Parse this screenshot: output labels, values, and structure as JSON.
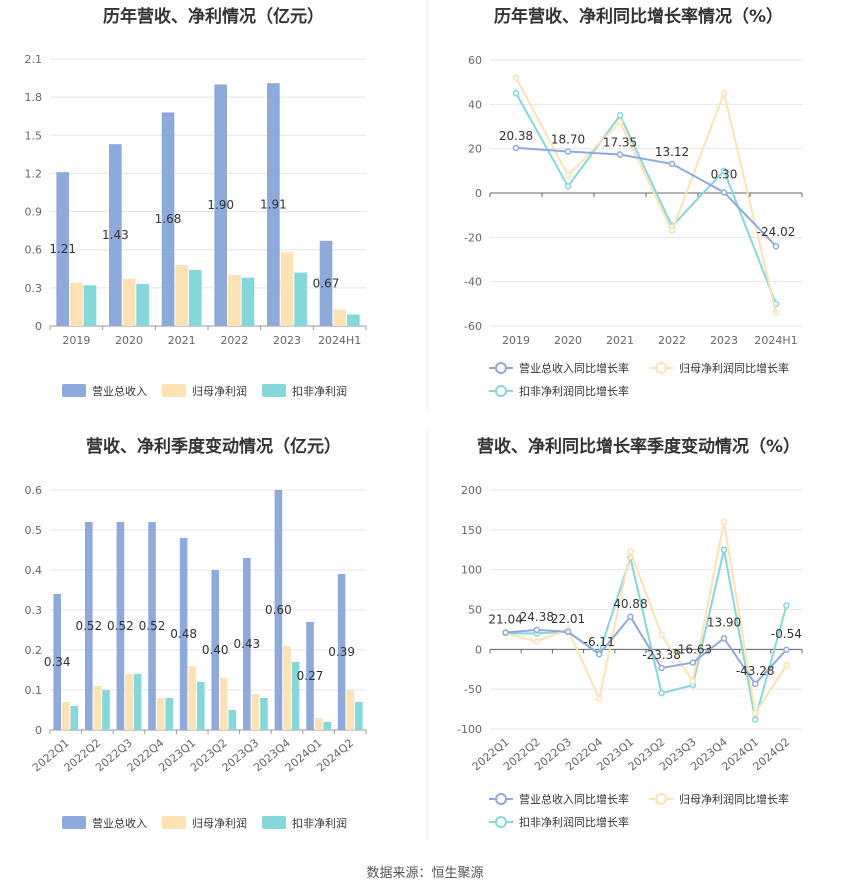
{
  "footer": "数据来源：恒生聚源",
  "colors": {
    "revenue": "#8eaadb",
    "net_parent": "#fde2b4",
    "net_deducted": "#86d7d9",
    "rev_line": "#8eaadb",
    "np_line": "#fde2b4",
    "nd_line": "#86d7d9"
  },
  "chart_data": [
    {
      "id": "annual_bar",
      "type": "bar",
      "title": "历年营收、净利情况（亿元）",
      "categories": [
        "2019",
        "2020",
        "2021",
        "2022",
        "2023",
        "2024H1"
      ],
      "ylim": [
        0,
        2.1
      ],
      "yticks": [
        "0",
        "0.3",
        "0.6",
        "0.9",
        "1.2",
        "1.5",
        "1.8",
        "2.1"
      ],
      "series": [
        {
          "name": "营业总收入",
          "values": [
            1.21,
            1.43,
            1.68,
            1.9,
            1.91,
            0.67
          ],
          "labels": [
            "1.21",
            "1.43",
            "1.68",
            "1.90",
            "1.91",
            "0.67"
          ]
        },
        {
          "name": "归母净利润",
          "values": [
            0.34,
            0.37,
            0.48,
            0.4,
            0.58,
            0.13
          ]
        },
        {
          "name": "扣非净利润",
          "values": [
            0.32,
            0.33,
            0.44,
            0.38,
            0.42,
            0.09
          ]
        }
      ],
      "legend": "bottom"
    },
    {
      "id": "annual_line",
      "type": "line",
      "title": "历年营收、净利同比增长率情况（%）",
      "categories": [
        "2019",
        "2020",
        "2021",
        "2022",
        "2023",
        "2024H1"
      ],
      "ylim": [
        -60,
        60
      ],
      "yticks": [
        "-60",
        "-40",
        "-20",
        "0",
        "20",
        "40",
        "60"
      ],
      "series": [
        {
          "name": "营业总收入同比增长率",
          "values": [
            20.38,
            18.7,
            17.35,
            13.12,
            0.3,
            -24.02
          ],
          "labels": [
            "20.38",
            "18.70",
            "17.35",
            "13.12",
            "0.30",
            "-24.02"
          ]
        },
        {
          "name": "归母净利润同比增长率",
          "values": [
            52,
            8,
            32,
            -17,
            45,
            -54
          ]
        },
        {
          "name": "扣非净利润同比增长率",
          "values": [
            45,
            3,
            35,
            -15,
            10,
            -50
          ]
        }
      ],
      "legend": "bottom"
    },
    {
      "id": "quarter_bar",
      "type": "bar",
      "title": "营收、净利季度变动情况（亿元）",
      "categories": [
        "2022Q1",
        "2022Q2",
        "2022Q3",
        "2022Q4",
        "2023Q1",
        "2023Q2",
        "2023Q3",
        "2023Q4",
        "2024Q1",
        "2024Q2"
      ],
      "ylim": [
        0,
        0.6
      ],
      "yticks": [
        "0",
        "0.1",
        "0.2",
        "0.3",
        "0.4",
        "0.5",
        "0.6"
      ],
      "series": [
        {
          "name": "营业总收入",
          "values": [
            0.34,
            0.52,
            0.52,
            0.52,
            0.48,
            0.4,
            0.43,
            0.6,
            0.27,
            0.39
          ],
          "labels": [
            "0.34",
            "0.52",
            "0.52",
            "0.52",
            "0.48",
            "0.40",
            "0.43",
            "0.60",
            "0.27",
            "0.39"
          ]
        },
        {
          "name": "归母净利润",
          "values": [
            0.07,
            0.11,
            0.14,
            0.08,
            0.16,
            0.13,
            0.09,
            0.21,
            0.03,
            0.1
          ]
        },
        {
          "name": "扣非净利润",
          "values": [
            0.06,
            0.1,
            0.14,
            0.08,
            0.12,
            0.05,
            0.08,
            0.17,
            0.02,
            0.07
          ]
        }
      ],
      "legend": "bottom"
    },
    {
      "id": "quarter_line",
      "type": "line",
      "title": "营收、净利同比增长率季度变动情况（%）",
      "categories": [
        "2022Q1",
        "2022Q2",
        "2022Q3",
        "2022Q4",
        "2023Q1",
        "2023Q2",
        "2023Q3",
        "2023Q4",
        "2024Q1",
        "2024Q2"
      ],
      "ylim": [
        -100,
        200
      ],
      "yticks": [
        "-100",
        "-50",
        "0",
        "50",
        "100",
        "150",
        "200"
      ],
      "series": [
        {
          "name": "营业总收入同比增长率",
          "values": [
            21.04,
            24.38,
            22.01,
            -6.11,
            40.88,
            -23.38,
            -16.63,
            13.9,
            -43.28,
            -0.54
          ],
          "labels": [
            "21.04",
            "24.38",
            "22.01",
            "-6.11",
            "40.88",
            "-23.38",
            "-16.63",
            "13.90",
            "-43.28",
            "-0.54"
          ]
        },
        {
          "name": "归母净利润同比增长率",
          "values": [
            20,
            10,
            25,
            -62,
            123,
            18,
            -40,
            160,
            -80,
            -20
          ]
        },
        {
          "name": "扣非净利润同比增长率",
          "values": [
            20,
            20,
            22,
            -5,
            115,
            -55,
            -45,
            125,
            -88,
            55
          ]
        }
      ],
      "legend": "bottom"
    }
  ]
}
